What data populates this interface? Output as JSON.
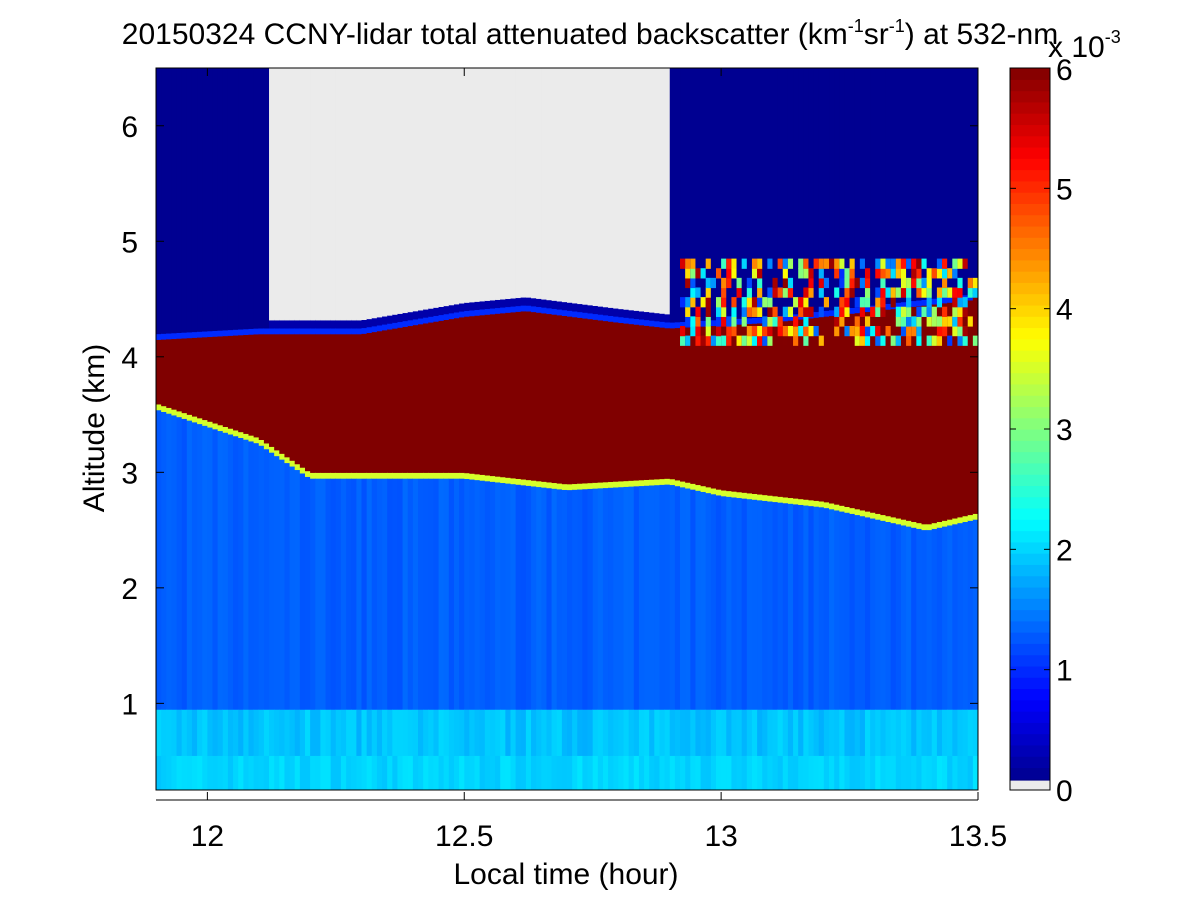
{
  "chart_data": {
    "type": "heatmap",
    "title": {
      "prefix": "20150324 CCNY-lidar total attenuated backscatter (km",
      "sup1": "-1",
      "middle": "sr",
      "sup2": "-1",
      "suffix": ") at 532-nm"
    },
    "xlabel": "Local time (hour)",
    "ylabel": "Altitude (km)",
    "xlim": [
      11.9,
      13.5
    ],
    "ylim": [
      0.25,
      6.5
    ],
    "xticks": [
      12,
      12.5,
      13,
      13.5
    ],
    "xtick_labels": [
      "12",
      "12.5",
      "13",
      "13.5"
    ],
    "yticks": [
      1,
      2,
      3,
      4,
      5,
      6
    ],
    "ytick_labels": [
      "1",
      "2",
      "3",
      "4",
      "5",
      "6"
    ],
    "colorbar": {
      "colormap": "jet",
      "clim": [
        0,
        6
      ],
      "ticks": [
        0,
        1,
        2,
        3,
        4,
        5,
        6
      ],
      "tick_labels": [
        "0",
        "1",
        "2",
        "3",
        "4",
        "5",
        "6"
      ],
      "scale_prefix": "x 10",
      "scale_exponent": "-3",
      "nodata_color": "#ebebeb"
    },
    "layers": {
      "near_surface_value": 2.0,
      "boundary_layer_value": 1.3,
      "cloud_value": 6.0,
      "above_cloud_value": 0.1,
      "boundary_layer_top_km": 0.95,
      "cloud_base_km": [
        {
          "t": 11.9,
          "z": 3.6
        },
        {
          "t": 12.0,
          "z": 3.45
        },
        {
          "t": 12.1,
          "z": 3.3
        },
        {
          "t": 12.2,
          "z": 3.0
        },
        {
          "t": 12.3,
          "z": 3.0
        },
        {
          "t": 12.5,
          "z": 3.0
        },
        {
          "t": 12.7,
          "z": 2.9
        },
        {
          "t": 12.9,
          "z": 2.95
        },
        {
          "t": 13.0,
          "z": 2.85
        },
        {
          "t": 13.2,
          "z": 2.75
        },
        {
          "t": 13.4,
          "z": 2.55
        },
        {
          "t": 13.5,
          "z": 2.65
        }
      ],
      "cloud_top_km": [
        {
          "t": 11.9,
          "z": 4.15
        },
        {
          "t": 12.1,
          "z": 4.2
        },
        {
          "t": 12.3,
          "z": 4.2
        },
        {
          "t": 12.5,
          "z": 4.35
        },
        {
          "t": 12.62,
          "z": 4.4
        },
        {
          "t": 12.8,
          "z": 4.3
        },
        {
          "t": 12.9,
          "z": 4.25
        },
        {
          "t": 13.1,
          "z": 4.3
        },
        {
          "t": 13.3,
          "z": 4.4
        },
        {
          "t": 13.5,
          "z": 4.5
        }
      ],
      "nodata_region": {
        "t_start": 12.12,
        "t_end": 12.9
      },
      "turbulent_cloud_top": {
        "t_start": 12.92,
        "t_end": 13.5,
        "z_bottom": 4.1,
        "z_top": 4.85
      }
    }
  }
}
